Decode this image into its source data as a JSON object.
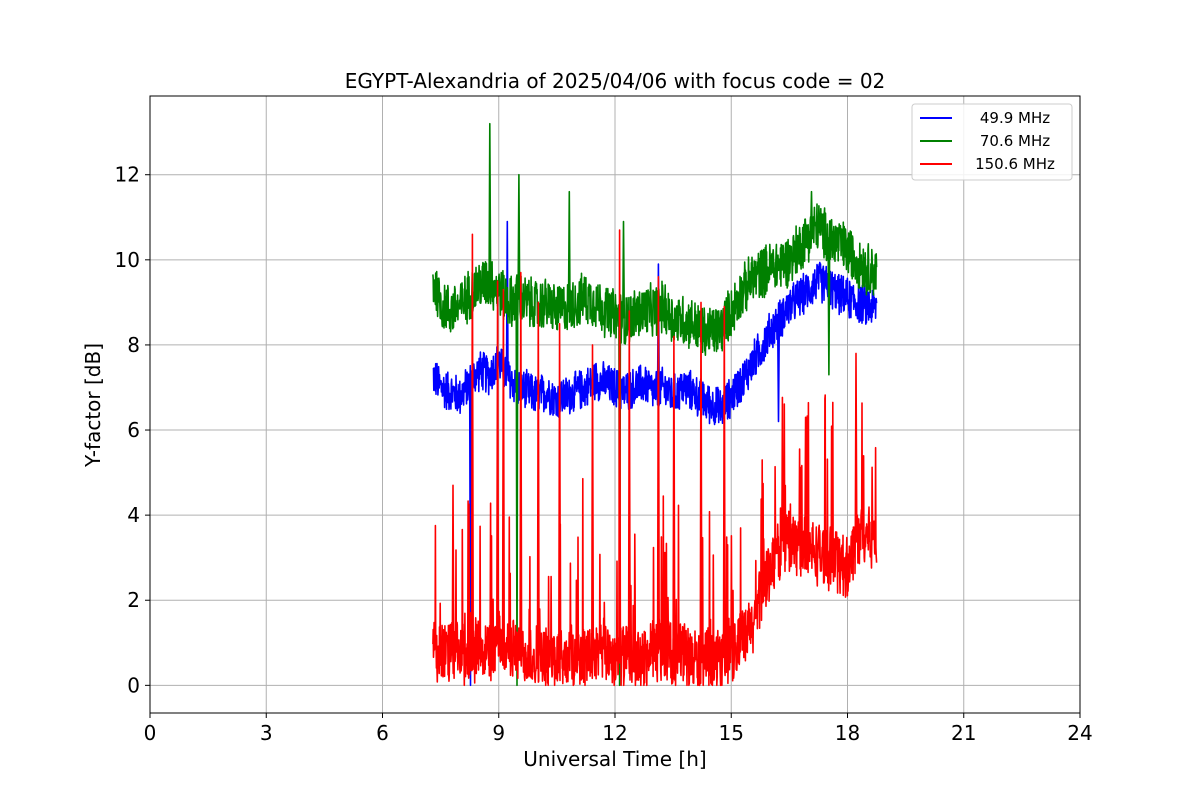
{
  "chart_data": {
    "type": "line",
    "title": "EGYPT-Alexandria of 2025/04/06 with focus code = 02",
    "xlabel": "Universal Time [h]",
    "ylabel": "Y-factor [dB]",
    "xlim": [
      0,
      24
    ],
    "ylim": [
      -0.65,
      13.85
    ],
    "x_ticks": [
      0,
      3,
      6,
      9,
      12,
      15,
      18,
      21,
      24
    ],
    "y_ticks": [
      0,
      2,
      4,
      6,
      8,
      10,
      12
    ],
    "grid": true,
    "legend_position": "top-right",
    "series": [
      {
        "name": "49.9 MHz",
        "color": "#0000ff",
        "x": [
          7.3,
          7.5,
          7.75,
          8.0,
          8.25,
          8.5,
          8.75,
          9.0,
          9.25,
          9.5,
          9.75,
          10.0,
          10.25,
          10.5,
          10.75,
          11.0,
          11.25,
          11.5,
          11.75,
          12.0,
          12.25,
          12.5,
          12.75,
          13.0,
          13.25,
          13.5,
          13.75,
          14.0,
          14.25,
          14.5,
          14.75,
          15.0,
          15.25,
          15.5,
          15.75,
          16.0,
          16.25,
          16.5,
          16.75,
          17.0,
          17.25,
          17.5,
          17.75,
          18.0,
          18.25,
          18.5,
          18.75
        ],
        "values": [
          7.3,
          7.0,
          6.9,
          6.8,
          7.1,
          7.4,
          7.3,
          7.6,
          7.2,
          7.0,
          6.9,
          6.8,
          6.9,
          6.7,
          6.8,
          6.9,
          7.0,
          7.2,
          7.1,
          7.0,
          6.9,
          7.0,
          7.1,
          6.9,
          7.0,
          6.8,
          7.0,
          6.9,
          6.7,
          6.6,
          6.5,
          6.8,
          7.1,
          7.5,
          7.9,
          8.3,
          8.6,
          8.9,
          9.1,
          9.3,
          9.5,
          9.4,
          9.2,
          9.1,
          9.0,
          8.9,
          8.9
        ]
      },
      {
        "name": "70.6 MHz",
        "color": "#008000",
        "x": [
          7.3,
          7.5,
          7.75,
          8.0,
          8.25,
          8.5,
          8.75,
          9.0,
          9.25,
          9.5,
          9.75,
          10.0,
          10.25,
          10.5,
          10.75,
          11.0,
          11.25,
          11.5,
          11.75,
          12.0,
          12.25,
          12.5,
          12.75,
          13.0,
          13.25,
          13.5,
          13.75,
          14.0,
          14.25,
          14.5,
          14.75,
          15.0,
          15.25,
          15.5,
          15.75,
          16.0,
          16.25,
          16.5,
          16.75,
          17.0,
          17.25,
          17.5,
          17.75,
          18.0,
          18.25,
          18.5,
          18.75
        ],
        "values": [
          9.5,
          9.0,
          8.8,
          8.9,
          9.2,
          9.4,
          9.5,
          9.3,
          9.0,
          9.1,
          9.0,
          8.9,
          9.0,
          8.8,
          8.9,
          9.0,
          9.1,
          9.0,
          8.8,
          8.7,
          8.6,
          8.7,
          8.8,
          8.8,
          8.9,
          8.6,
          8.6,
          8.5,
          8.3,
          8.3,
          8.4,
          8.8,
          9.2,
          9.5,
          9.7,
          9.8,
          9.9,
          10.0,
          10.3,
          10.6,
          10.8,
          10.5,
          10.4,
          10.2,
          10.0,
          9.8,
          9.7
        ]
      },
      {
        "name": "150.6 MHz",
        "color": "#ff0000",
        "x": [
          7.3,
          7.5,
          7.75,
          8.0,
          8.25,
          8.5,
          8.75,
          9.0,
          9.25,
          9.5,
          9.75,
          10.0,
          10.25,
          10.5,
          10.75,
          11.0,
          11.25,
          11.5,
          11.75,
          12.0,
          12.25,
          12.5,
          12.75,
          13.0,
          13.25,
          13.5,
          13.75,
          14.0,
          14.25,
          14.5,
          14.75,
          15.0,
          15.25,
          15.5,
          15.75,
          16.0,
          16.25,
          16.5,
          16.75,
          17.0,
          17.25,
          17.5,
          17.75,
          18.0,
          18.25,
          18.5,
          18.75
        ],
        "values": [
          0.9,
          0.8,
          0.7,
          0.7,
          0.8,
          0.9,
          0.8,
          1.0,
          0.9,
          0.8,
          0.7,
          0.7,
          0.6,
          0.6,
          0.6,
          0.7,
          0.7,
          0.7,
          0.8,
          0.7,
          0.7,
          0.6,
          0.6,
          0.8,
          0.9,
          0.7,
          0.8,
          0.6,
          0.5,
          0.6,
          0.6,
          0.8,
          1.0,
          1.3,
          2.0,
          2.8,
          3.2,
          3.4,
          3.3,
          3.2,
          3.1,
          3.0,
          2.9,
          2.8,
          3.5,
          3.6,
          3.4
        ]
      }
    ],
    "spikes": [
      {
        "series": 2,
        "x": 7.8,
        "values": [
          3.8,
          4.7
        ]
      },
      {
        "series": 2,
        "x": 8.3,
        "values": [
          10.6
        ]
      },
      {
        "series": 2,
        "x": 8.95,
        "values": [
          9.5
        ]
      },
      {
        "series": 2,
        "x": 9.1,
        "values": [
          9.3
        ]
      },
      {
        "series": 2,
        "x": 9.55,
        "values": [
          9.7
        ]
      },
      {
        "series": 2,
        "x": 10.0,
        "values": [
          9.0
        ]
      },
      {
        "series": 2,
        "x": 10.55,
        "values": [
          8.5
        ]
      },
      {
        "series": 2,
        "x": 11.4,
        "values": [
          8.0
        ]
      },
      {
        "series": 2,
        "x": 12.1,
        "values": [
          10.7
        ]
      },
      {
        "series": 2,
        "x": 12.35,
        "values": [
          8.8
        ]
      },
      {
        "series": 2,
        "x": 13.1,
        "values": [
          9.6
        ]
      },
      {
        "series": 2,
        "x": 13.5,
        "values": [
          8.2
        ]
      },
      {
        "series": 2,
        "x": 14.2,
        "values": [
          9.0
        ]
      },
      {
        "series": 2,
        "x": 14.8,
        "values": [
          8.9
        ]
      },
      {
        "series": 2,
        "x": 16.9,
        "values": [
          6.3
        ]
      },
      {
        "series": 2,
        "x": 18.2,
        "values": [
          7.8
        ]
      },
      {
        "series": 1,
        "x": 8.75,
        "values": [
          13.2
        ]
      },
      {
        "series": 1,
        "x": 9.5,
        "values": [
          12.0
        ]
      },
      {
        "series": 1,
        "x": 10.8,
        "values": [
          11.6
        ]
      },
      {
        "series": 1,
        "x": 12.2,
        "values": [
          10.9
        ]
      },
      {
        "series": 1,
        "x": 17.05,
        "values": [
          11.6
        ]
      },
      {
        "series": 1,
        "x": 17.5,
        "values": [
          7.3
        ]
      },
      {
        "series": 1,
        "x": 9.45,
        "values": [
          0.0
        ]
      },
      {
        "series": 1,
        "x": 12.1,
        "values": [
          0.0
        ]
      },
      {
        "series": 0,
        "x": 9.2,
        "values": [
          10.9
        ]
      },
      {
        "series": 0,
        "x": 13.1,
        "values": [
          9.9
        ]
      },
      {
        "series": 0,
        "x": 16.2,
        "values": [
          6.2
        ]
      },
      {
        "series": 0,
        "x": 8.25,
        "values": [
          0.0
        ]
      }
    ]
  }
}
